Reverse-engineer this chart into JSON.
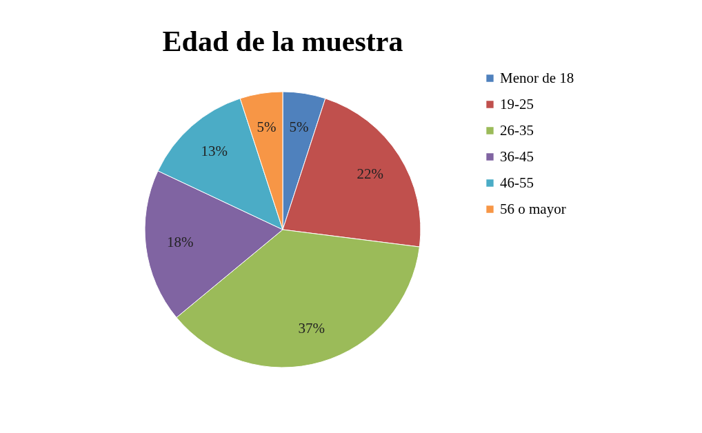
{
  "chart_data": {
    "type": "pie",
    "title": "Edad de la muestra",
    "categories": [
      "Menor de 18",
      "19-25",
      "26-35",
      "36-45",
      "46-55",
      "56 o mayor"
    ],
    "values": [
      5,
      22,
      37,
      18,
      13,
      5
    ],
    "colors": [
      "#4f81bd",
      "#c0504d",
      "#9bbb59",
      "#8064a2",
      "#4bacc6",
      "#f79646"
    ],
    "value_labels": [
      "5%",
      "22%",
      "37%",
      "18%",
      "13%",
      "5%"
    ],
    "legend": "right"
  }
}
